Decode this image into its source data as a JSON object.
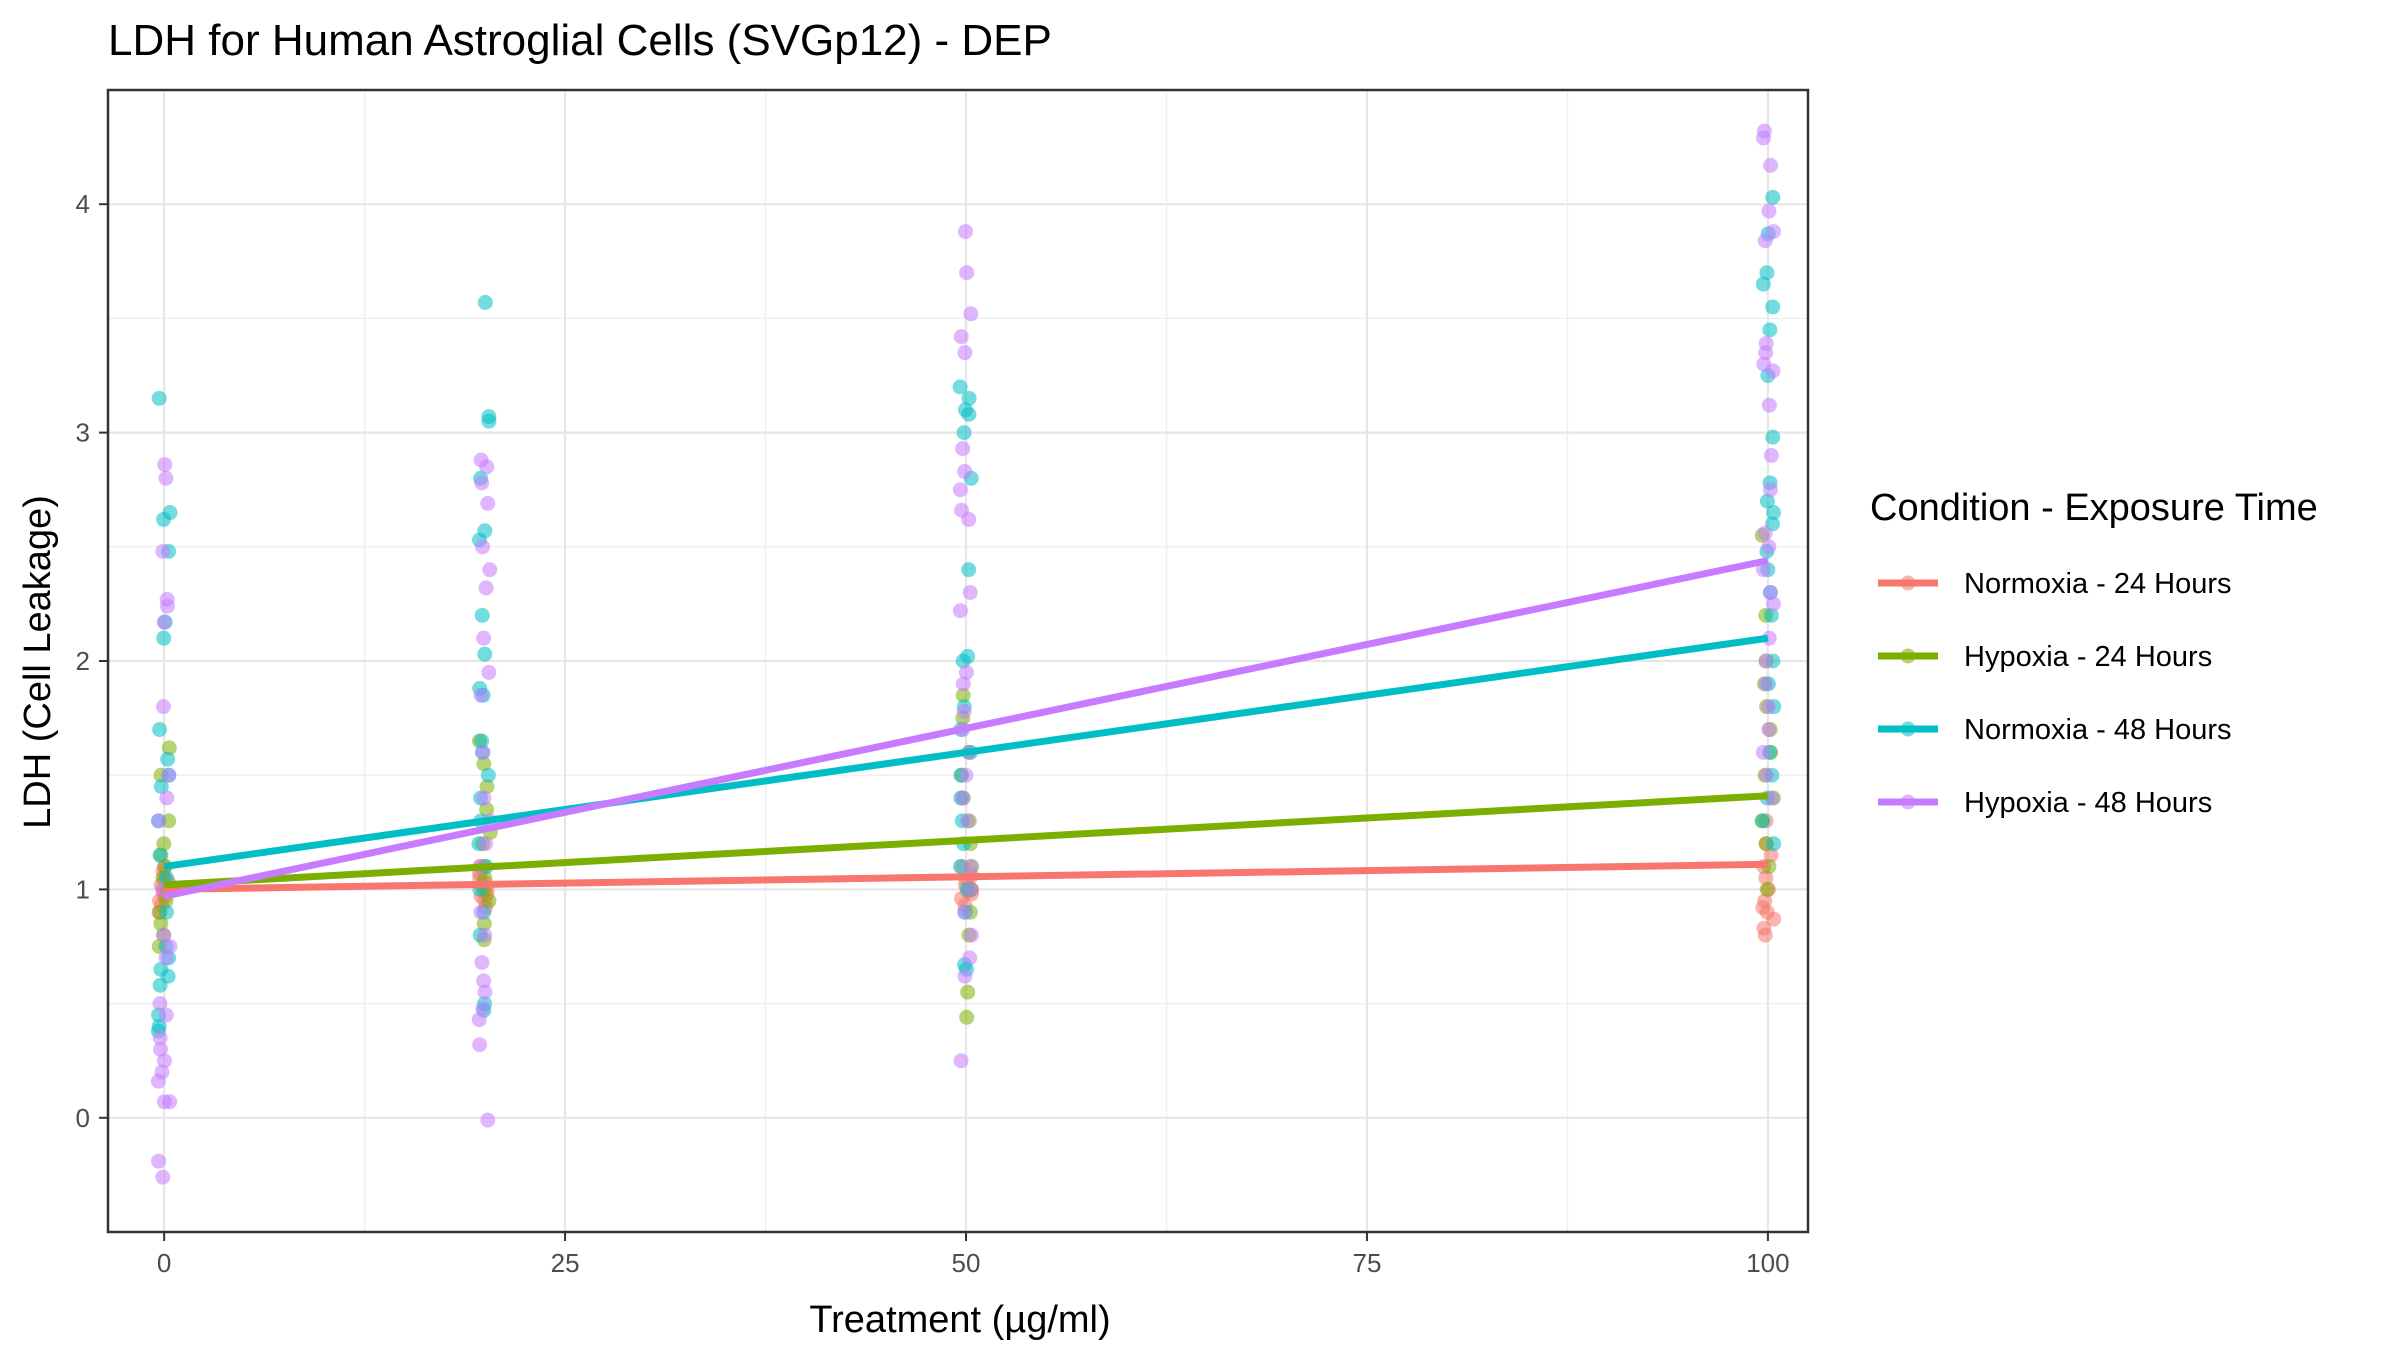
{
  "chart_data": {
    "type": "scatter",
    "title": "LDH for Human Astroglial Cells (SVGp12) - DEP",
    "xlabel": "Treatment (µg/ml)",
    "ylabel": "LDH (Cell Leakage)",
    "xlim": [
      -3.5,
      102.5
    ],
    "ylim": [
      -0.5,
      4.5
    ],
    "x_ticks": [
      0,
      25,
      50,
      75,
      100
    ],
    "x_tick_labels": [
      "0",
      "25",
      "50",
      "75",
      "100"
    ],
    "y_ticks": [
      0,
      1,
      2,
      3,
      4
    ],
    "y_tick_labels": [
      "0",
      "1",
      "2",
      "3",
      "4"
    ],
    "x_doses": [
      0,
      20,
      50,
      100
    ],
    "grid": true,
    "legend": {
      "title": "Condition - Exposure Time",
      "position": "right"
    },
    "series": [
      {
        "name": "Normoxia - 24 Hours",
        "color": "#F8766D",
        "trend": [
          [
            0,
            1.0
          ],
          [
            100,
            1.11
          ]
        ],
        "points": [
          [
            0,
            [
              1.0,
              1.05,
              0.95,
              1.02,
              0.98,
              1.1,
              0.9,
              1.03,
              0.97,
              1.08,
              0.93,
              1.0
            ]
          ],
          [
            20,
            [
              1.0,
              1.05,
              0.95,
              1.02,
              0.98,
              1.1,
              0.92,
              1.03,
              0.97,
              1.07
            ]
          ],
          [
            50,
            [
              1.0,
              1.06,
              0.96,
              1.02,
              0.98,
              1.1,
              0.93,
              1.04,
              0.99
            ]
          ],
          [
            100,
            [
              0.8,
              0.83,
              0.87,
              0.9,
              0.95,
              1.0,
              1.05,
              1.1,
              1.15,
              1.2,
              1.3,
              0.92
            ]
          ]
        ]
      },
      {
        "name": "Hypoxia - 24 Hours",
        "color": "#7CAE00",
        "trend": [
          [
            0,
            1.02
          ],
          [
            100,
            1.41
          ]
        ],
        "points": [
          [
            0,
            [
              1.62,
              1.5,
              1.3,
              1.2,
              1.15,
              1.1,
              1.05,
              1.0,
              0.95,
              0.9,
              0.85,
              0.8,
              0.75
            ]
          ],
          [
            20,
            [
              1.65,
              1.55,
              1.45,
              1.35,
              1.25,
              1.2,
              1.1,
              1.05,
              1.0,
              0.95,
              0.85,
              0.78
            ]
          ],
          [
            50,
            [
              1.85,
              1.75,
              1.6,
              1.5,
              1.4,
              1.3,
              1.2,
              1.1,
              1.0,
              0.9,
              0.8,
              0.55,
              0.44
            ]
          ],
          [
            100,
            [
              2.55,
              2.2,
              2.0,
              1.9,
              1.8,
              1.7,
              1.6,
              1.5,
              1.4,
              1.3,
              1.2,
              1.1,
              1.0
            ]
          ]
        ]
      },
      {
        "name": "Normoxia - 48 Hours",
        "color": "#00BFC4",
        "trend": [
          [
            0,
            1.1
          ],
          [
            100,
            2.1
          ]
        ],
        "points": [
          [
            0,
            [
              3.15,
              2.65,
              2.62,
              2.48,
              2.17,
              2.1,
              1.7,
              1.57,
              1.5,
              1.45,
              1.3,
              1.15,
              1.05,
              0.9,
              0.75,
              0.7,
              0.65,
              0.62,
              0.58,
              0.45,
              0.4,
              0.38
            ]
          ],
          [
            20,
            [
              3.57,
              3.07,
              3.05,
              2.8,
              2.57,
              2.53,
              2.2,
              2.03,
              1.88,
              1.85,
              1.65,
              1.6,
              1.5,
              1.4,
              1.3,
              1.2,
              1.1,
              1.0,
              0.9,
              0.8,
              0.5,
              0.47
            ]
          ],
          [
            50,
            [
              3.2,
              3.15,
              3.1,
              3.08,
              3.0,
              2.8,
              2.4,
              2.02,
              2.0,
              1.8,
              1.7,
              1.6,
              1.5,
              1.4,
              1.3,
              1.2,
              1.1,
              1.0,
              0.9,
              0.67,
              0.65
            ]
          ],
          [
            100,
            [
              4.03,
              3.87,
              3.7,
              3.65,
              3.55,
              3.45,
              3.25,
              2.98,
              2.78,
              2.7,
              2.65,
              2.6,
              2.48,
              2.4,
              2.3,
              2.2,
              2.0,
              1.9,
              1.8,
              1.6,
              1.5,
              1.4,
              1.3,
              1.2
            ]
          ]
        ]
      },
      {
        "name": "Hypoxia - 48 Hours",
        "color": "#C77CFF",
        "trend": [
          [
            0,
            0.97
          ],
          [
            100,
            2.44
          ]
        ],
        "points": [
          [
            0,
            [
              2.86,
              2.8,
              2.48,
              2.27,
              2.24,
              2.17,
              1.8,
              1.5,
              1.4,
              1.3,
              1.0,
              0.8,
              0.75,
              0.7,
              0.5,
              0.45,
              0.35,
              0.3,
              0.25,
              0.2,
              0.16,
              0.07,
              0.07,
              -0.19,
              -0.26
            ]
          ],
          [
            20,
            [
              2.88,
              2.85,
              2.78,
              2.69,
              2.5,
              2.4,
              2.32,
              2.1,
              1.95,
              1.85,
              1.6,
              1.4,
              1.3,
              1.2,
              1.1,
              0.9,
              0.8,
              0.68,
              0.6,
              0.55,
              0.48,
              0.43,
              0.32,
              -0.01
            ]
          ],
          [
            50,
            [
              3.88,
              3.7,
              3.52,
              3.42,
              3.35,
              2.93,
              2.83,
              2.75,
              2.66,
              2.62,
              2.3,
              2.22,
              1.95,
              1.9,
              1.78,
              1.7,
              1.6,
              1.5,
              1.4,
              1.3,
              1.1,
              1.0,
              0.9,
              0.8,
              0.7,
              0.62,
              0.25
            ]
          ],
          [
            100,
            [
              4.32,
              4.29,
              4.17,
              3.97,
              3.88,
              3.84,
              3.39,
              3.35,
              3.3,
              3.27,
              3.12,
              2.9,
              2.75,
              2.56,
              2.5,
              2.4,
              2.3,
              2.25,
              2.1,
              2.0,
              1.9,
              1.8,
              1.7,
              1.6,
              1.5,
              1.4
            ]
          ]
        ]
      }
    ]
  }
}
